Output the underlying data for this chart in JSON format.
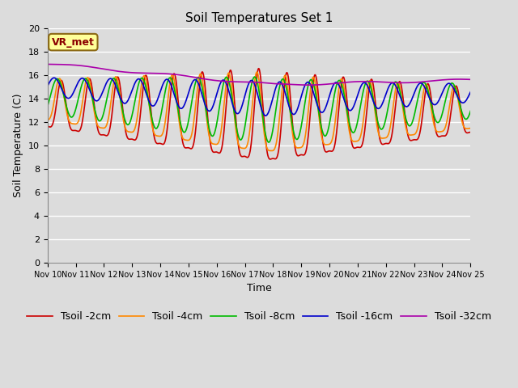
{
  "title": "Soil Temperatures Set 1",
  "xlabel": "Time",
  "ylabel": "Soil Temperature (C)",
  "ylim": [
    0,
    20
  ],
  "xlim": [
    0,
    15
  ],
  "bg_color": "#dcdcdc",
  "fig_bg_color": "#dcdcdc",
  "grid_color": "white",
  "vr_met_label": "VR_met",
  "x_tick_labels": [
    "Nov 10",
    "Nov 11",
    "Nov 12",
    "Nov 13",
    "Nov 14",
    "Nov 15",
    "Nov 16",
    "Nov 17",
    "Nov 18",
    "Nov 19",
    "Nov 20",
    "Nov 21",
    "Nov 22",
    "Nov 23",
    "Nov 24",
    "Nov 25"
  ],
  "series_colors": {
    "Tsoil -2cm": "#cc0000",
    "Tsoil -4cm": "#ff8800",
    "Tsoil -8cm": "#00bb00",
    "Tsoil -16cm": "#0000cc",
    "Tsoil -32cm": "#aa00aa"
  },
  "legend_fontsize": 9,
  "title_fontsize": 11
}
